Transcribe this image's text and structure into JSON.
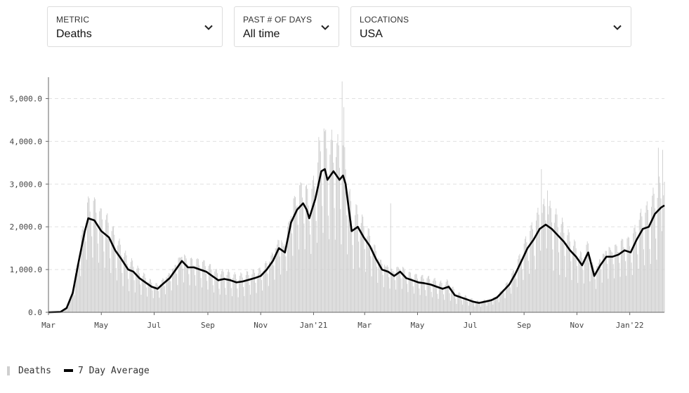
{
  "filters": {
    "metric": {
      "label": "METRIC",
      "value": "Deaths"
    },
    "days": {
      "label": "PAST # OF DAYS",
      "value": "All time"
    },
    "locations": {
      "label": "LOCATIONS",
      "value": "USA"
    },
    "chevron_icon": "chevron-down-icon"
  },
  "legend": {
    "bars_label": "Deaths",
    "line_label": "7 Day Average",
    "bar_color": "#cfcfcf",
    "line_color": "#000000"
  },
  "chart_data": {
    "type": "bar",
    "title": "",
    "xlabel": "",
    "ylabel": "",
    "x_range": [
      "2020-03-01",
      "2022-02-10"
    ],
    "ylim": [
      0,
      5500
    ],
    "y_ticks": [
      0,
      1000,
      2000,
      3000,
      4000,
      5000
    ],
    "y_tick_labels": [
      "0.0",
      "1,000.0",
      "2,000.0",
      "3,000.0",
      "4,000.0",
      "5,000.0"
    ],
    "x_ticks": [
      {
        "date": "2020-03-01",
        "label": "Mar"
      },
      {
        "date": "2020-05-01",
        "label": "May"
      },
      {
        "date": "2020-07-01",
        "label": "Jul"
      },
      {
        "date": "2020-09-01",
        "label": "Sep"
      },
      {
        "date": "2020-11-01",
        "label": "Nov"
      },
      {
        "date": "2021-01-01",
        "label": "Jan'21"
      },
      {
        "date": "2021-03-01",
        "label": "Mar"
      },
      {
        "date": "2021-05-01",
        "label": "May"
      },
      {
        "date": "2021-07-01",
        "label": "Jul"
      },
      {
        "date": "2021-09-01",
        "label": "Sep"
      },
      {
        "date": "2021-11-01",
        "label": "Nov"
      },
      {
        "date": "2022-01-01",
        "label": "Jan'22"
      }
    ],
    "grid": "horizontal",
    "legend_position": "bottom-left",
    "series": [
      {
        "name": "7 Day Average",
        "kind": "line",
        "points": [
          [
            "2020-03-01",
            0
          ],
          [
            "2020-03-15",
            10
          ],
          [
            "2020-03-22",
            100
          ],
          [
            "2020-03-29",
            450
          ],
          [
            "2020-04-05",
            1200
          ],
          [
            "2020-04-12",
            1900
          ],
          [
            "2020-04-16",
            2200
          ],
          [
            "2020-04-23",
            2150
          ],
          [
            "2020-05-01",
            1900
          ],
          [
            "2020-05-10",
            1750
          ],
          [
            "2020-05-17",
            1450
          ],
          [
            "2020-05-24",
            1250
          ],
          [
            "2020-06-01",
            1000
          ],
          [
            "2020-06-07",
            950
          ],
          [
            "2020-06-14",
            800
          ],
          [
            "2020-06-21",
            700
          ],
          [
            "2020-06-28",
            600
          ],
          [
            "2020-07-05",
            550
          ],
          [
            "2020-07-12",
            680
          ],
          [
            "2020-07-19",
            800
          ],
          [
            "2020-07-26",
            1000
          ],
          [
            "2020-08-02",
            1200
          ],
          [
            "2020-08-09",
            1050
          ],
          [
            "2020-08-16",
            1050
          ],
          [
            "2020-08-23",
            1000
          ],
          [
            "2020-08-30",
            950
          ],
          [
            "2020-09-06",
            850
          ],
          [
            "2020-09-13",
            750
          ],
          [
            "2020-09-20",
            780
          ],
          [
            "2020-09-27",
            750
          ],
          [
            "2020-10-04",
            700
          ],
          [
            "2020-10-11",
            720
          ],
          [
            "2020-10-18",
            760
          ],
          [
            "2020-10-25",
            800
          ],
          [
            "2020-11-01",
            850
          ],
          [
            "2020-11-08",
            1000
          ],
          [
            "2020-11-15",
            1200
          ],
          [
            "2020-11-22",
            1500
          ],
          [
            "2020-11-29",
            1400
          ],
          [
            "2020-12-06",
            2100
          ],
          [
            "2020-12-13",
            2400
          ],
          [
            "2020-12-20",
            2550
          ],
          [
            "2020-12-24",
            2400
          ],
          [
            "2020-12-27",
            2200
          ],
          [
            "2021-01-03",
            2650
          ],
          [
            "2021-01-10",
            3300
          ],
          [
            "2021-01-14",
            3350
          ],
          [
            "2021-01-17",
            3100
          ],
          [
            "2021-01-24",
            3300
          ],
          [
            "2021-01-31",
            3100
          ],
          [
            "2021-02-04",
            3200
          ],
          [
            "2021-02-07",
            3000
          ],
          [
            "2021-02-14",
            1900
          ],
          [
            "2021-02-21",
            2000
          ],
          [
            "2021-02-28",
            1750
          ],
          [
            "2021-03-07",
            1550
          ],
          [
            "2021-03-14",
            1250
          ],
          [
            "2021-03-21",
            1000
          ],
          [
            "2021-03-28",
            950
          ],
          [
            "2021-04-04",
            850
          ],
          [
            "2021-04-11",
            950
          ],
          [
            "2021-04-18",
            800
          ],
          [
            "2021-04-25",
            750
          ],
          [
            "2021-05-02",
            700
          ],
          [
            "2021-05-09",
            680
          ],
          [
            "2021-05-16",
            650
          ],
          [
            "2021-05-23",
            600
          ],
          [
            "2021-05-30",
            550
          ],
          [
            "2021-06-06",
            600
          ],
          [
            "2021-06-13",
            400
          ],
          [
            "2021-06-20",
            350
          ],
          [
            "2021-06-27",
            300
          ],
          [
            "2021-07-04",
            250
          ],
          [
            "2021-07-11",
            220
          ],
          [
            "2021-07-18",
            250
          ],
          [
            "2021-07-25",
            280
          ],
          [
            "2021-08-01",
            350
          ],
          [
            "2021-08-08",
            500
          ],
          [
            "2021-08-15",
            650
          ],
          [
            "2021-08-22",
            900
          ],
          [
            "2021-08-29",
            1200
          ],
          [
            "2021-09-05",
            1500
          ],
          [
            "2021-09-12",
            1700
          ],
          [
            "2021-09-19",
            1950
          ],
          [
            "2021-09-26",
            2050
          ],
          [
            "2021-10-03",
            1950
          ],
          [
            "2021-10-10",
            1800
          ],
          [
            "2021-10-17",
            1650
          ],
          [
            "2021-10-24",
            1450
          ],
          [
            "2021-10-31",
            1300
          ],
          [
            "2021-11-07",
            1100
          ],
          [
            "2021-11-14",
            1400
          ],
          [
            "2021-11-21",
            850
          ],
          [
            "2021-11-28",
            1100
          ],
          [
            "2021-12-05",
            1300
          ],
          [
            "2021-12-12",
            1300
          ],
          [
            "2021-12-19",
            1350
          ],
          [
            "2021-12-26",
            1450
          ],
          [
            "2022-01-02",
            1400
          ],
          [
            "2022-01-09",
            1700
          ],
          [
            "2022-01-16",
            1950
          ],
          [
            "2022-01-23",
            2000
          ],
          [
            "2022-01-30",
            2300
          ],
          [
            "2022-02-06",
            2450
          ],
          [
            "2022-02-10",
            2500
          ]
        ]
      },
      {
        "name": "Deaths",
        "kind": "daily_bars",
        "weekly_pattern": [
          1.15,
          1.2,
          1.15,
          1.05,
          0.8,
          0.55,
          1.1
        ],
        "spikes": [
          [
            "2021-02-03",
            5400
          ],
          [
            "2021-02-05",
            4800
          ],
          [
            "2021-01-07",
            4100
          ],
          [
            "2021-01-13",
            4300
          ],
          [
            "2021-03-31",
            2550
          ],
          [
            "2021-09-21",
            3350
          ],
          [
            "2021-09-28",
            2850
          ],
          [
            "2022-02-03",
            3850
          ],
          [
            "2022-02-08",
            3800
          ]
        ]
      }
    ]
  }
}
